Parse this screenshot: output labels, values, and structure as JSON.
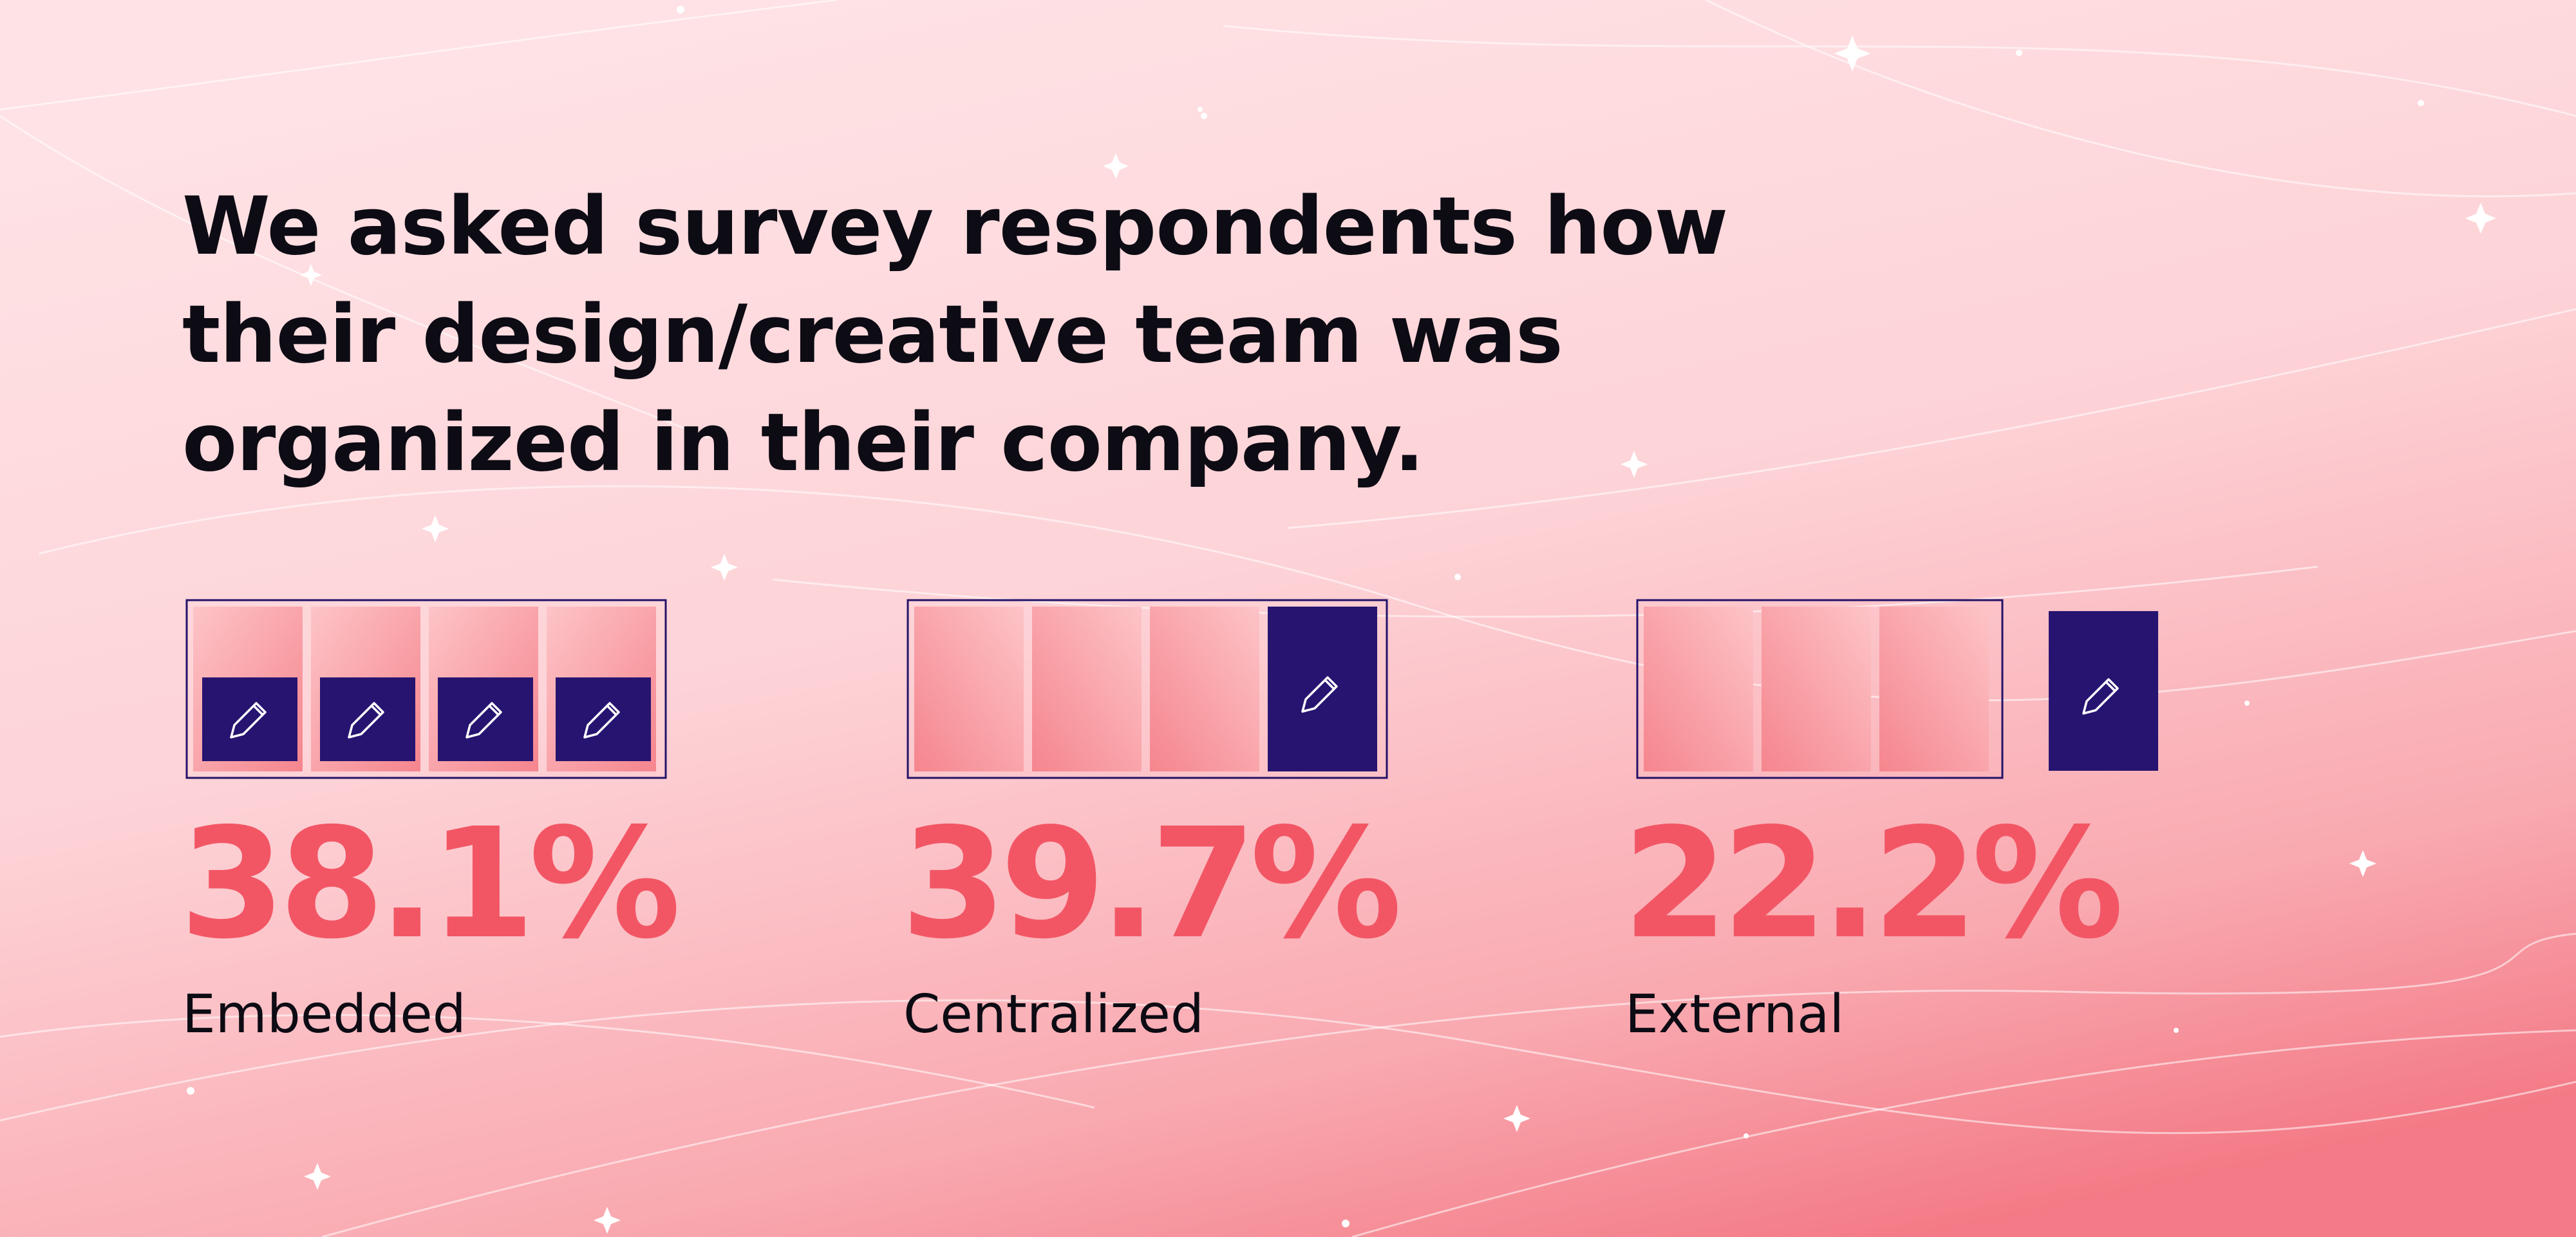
{
  "headline": "We asked survey respondents how their design/creative team was organized in their company.",
  "colors": {
    "accent": "#f25665",
    "team_block": "#271470",
    "frame": "#241268",
    "text": "#0d0b14",
    "background_top": "#fde0e3",
    "background_bottom": "#f58a94"
  },
  "icons": {
    "team_block": "pencil-icon"
  },
  "chart_data": {
    "type": "bar",
    "title": "We asked survey respondents how their design/creative team was organized in their company.",
    "xlabel": "",
    "ylabel": "",
    "categories": [
      "Embedded",
      "Centralized",
      "External"
    ],
    "values": [
      38.1,
      39.7,
      22.2
    ],
    "value_labels": [
      "38.1%",
      "39.7%",
      "22.2%"
    ],
    "unit": "%",
    "ylim": [
      0,
      100
    ],
    "grid": false,
    "legend": "none"
  }
}
